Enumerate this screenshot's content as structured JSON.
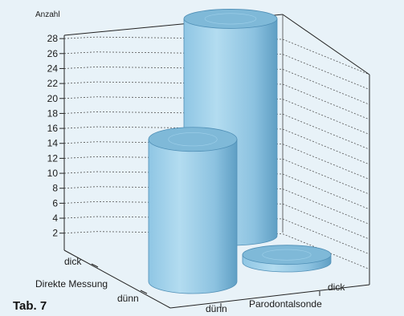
{
  "caption": "Tab. 7",
  "colors": {
    "background": "#e8f2f8",
    "cylinder_side_light": "#a8d4ec",
    "cylinder_side_dark": "#6fb0d2",
    "cylinder_top": "#7fb9d8",
    "grid": "#555555"
  },
  "chart_data": {
    "type": "bar",
    "style": "3d-cylinder",
    "ylabel": "Anzahl",
    "ylim": [
      0,
      28
    ],
    "yticks": [
      2,
      4,
      6,
      8,
      10,
      12,
      14,
      16,
      18,
      20,
      22,
      24,
      26,
      28
    ],
    "x_axis": {
      "label": "Parodontalsonde",
      "categories": [
        "dünn",
        "dick"
      ]
    },
    "z_axis": {
      "label": "Direkte Messung",
      "categories": [
        "dick",
        "dünn"
      ]
    },
    "grid": true,
    "cells": [
      {
        "parodontalsonde": "dünn",
        "direkte_messung": "dünn",
        "value": 19
      },
      {
        "parodontalsonde": "dick",
        "direkte_messung": "dick",
        "value": 29
      },
      {
        "parodontalsonde": "dick",
        "direkte_messung": "dünn",
        "value": 1
      }
    ]
  }
}
